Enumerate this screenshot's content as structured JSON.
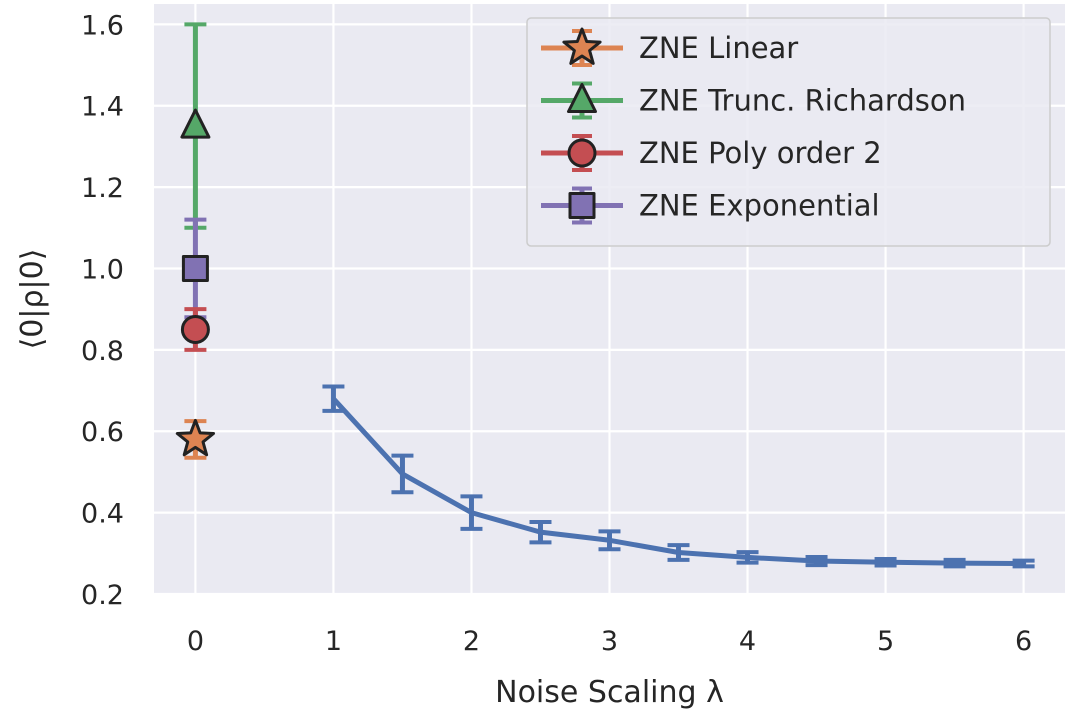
{
  "chart_data": {
    "type": "line",
    "xlabel": "Noise Scaling λ",
    "ylabel": "⟨0|ρ|0⟩",
    "xlim": [
      -0.3,
      6.3
    ],
    "ylim": [
      0.2,
      1.65
    ],
    "x_ticks": [
      "0",
      "1",
      "2",
      "3",
      "4",
      "5",
      "6"
    ],
    "y_ticks": [
      "0.2",
      "0.4",
      "0.6",
      "0.8",
      "1.0",
      "1.2",
      "1.4",
      "1.6"
    ],
    "grid": true,
    "legend_position": "top-right",
    "background": "#EAEAF2",
    "series": [
      {
        "color": "#4C72B0",
        "marker": "none",
        "x": [
          1,
          1.5,
          2,
          2.5,
          3,
          3.5,
          4,
          4.5,
          5,
          5.5,
          6
        ],
        "y": [
          0.68,
          0.495,
          0.4,
          0.352,
          0.332,
          0.302,
          0.29,
          0.281,
          0.278,
          0.276,
          0.275
        ],
        "err": [
          0.03,
          0.045,
          0.04,
          0.025,
          0.022,
          0.018,
          0.013,
          0.01,
          0.008,
          0.008,
          0.007
        ]
      },
      {
        "name": "ZNE Linear",
        "color": "#DD8452",
        "marker": "star",
        "x": [
          0
        ],
        "y": [
          0.58
        ],
        "err": [
          0.045
        ]
      },
      {
        "name": "ZNE Trunc. Richardson",
        "color": "#55A868",
        "marker": "triangle",
        "x": [
          0
        ],
        "y": [
          1.35
        ],
        "err": [
          0.25
        ]
      },
      {
        "name": "ZNE Poly order 2",
        "color": "#C44E52",
        "marker": "circle",
        "x": [
          0
        ],
        "y": [
          0.85
        ],
        "err": [
          0.05
        ]
      },
      {
        "name": "ZNE Exponential",
        "color": "#8172B3",
        "marker": "square",
        "x": [
          0
        ],
        "y": [
          1.0
        ],
        "err": [
          0.12
        ]
      }
    ]
  }
}
